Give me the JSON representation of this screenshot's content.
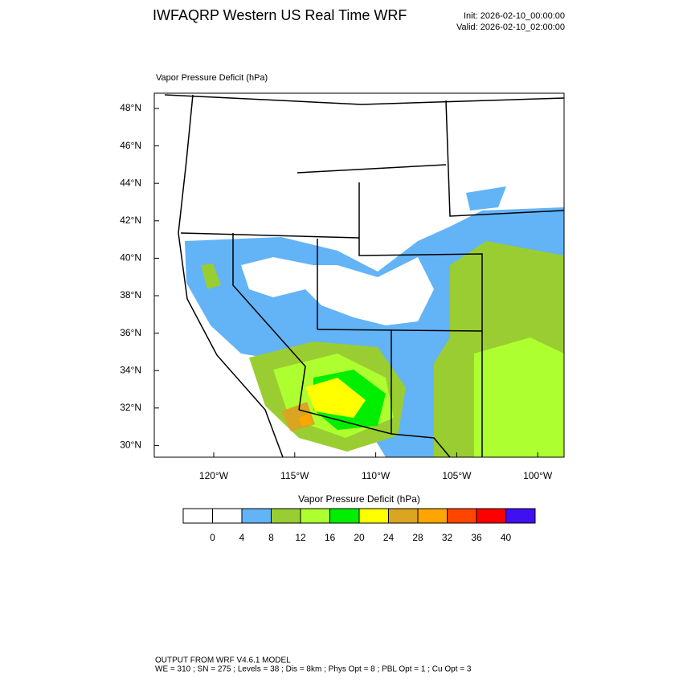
{
  "header": {
    "title": "IWFAQRP Western US Real Time WRF",
    "init": "Init: 2026-02-10_00:00:00",
    "valid": "Valid: 2026-02-10_02:00:00"
  },
  "map": {
    "label": "Vapor Pressure Deficit   (hPa)",
    "lat_labels": [
      "48°N",
      "46°N",
      "44°N",
      "42°N",
      "40°N",
      "38°N",
      "36°N",
      "34°N",
      "32°N",
      "30°N"
    ],
    "lon_labels": [
      "120°W",
      "115°W",
      "110°W",
      "105°W",
      "100°W"
    ]
  },
  "colorbar": {
    "title": "Vapor Pressure Deficit  (hPa)",
    "colors": [
      "#ffffff",
      "#ffffff",
      "#63b3f7",
      "#9acd32",
      "#adff2f",
      "#00ee00",
      "#ffff00",
      "#daa520",
      "#ffa500",
      "#ff4500",
      "#ff0000",
      "#3f10f0"
    ],
    "levels": [
      0,
      4,
      8,
      12,
      16,
      20,
      24,
      28,
      32,
      36,
      40
    ]
  },
  "footer": {
    "line1": "OUTPUT FROM WRF V4.6.1 MODEL",
    "line2": "WE = 310 ; SN = 275 ; Levels = 38 ; Dis = 8km ; Phys Opt = 8 ; PBL Opt = 1 ; Cu Opt = 3"
  }
}
